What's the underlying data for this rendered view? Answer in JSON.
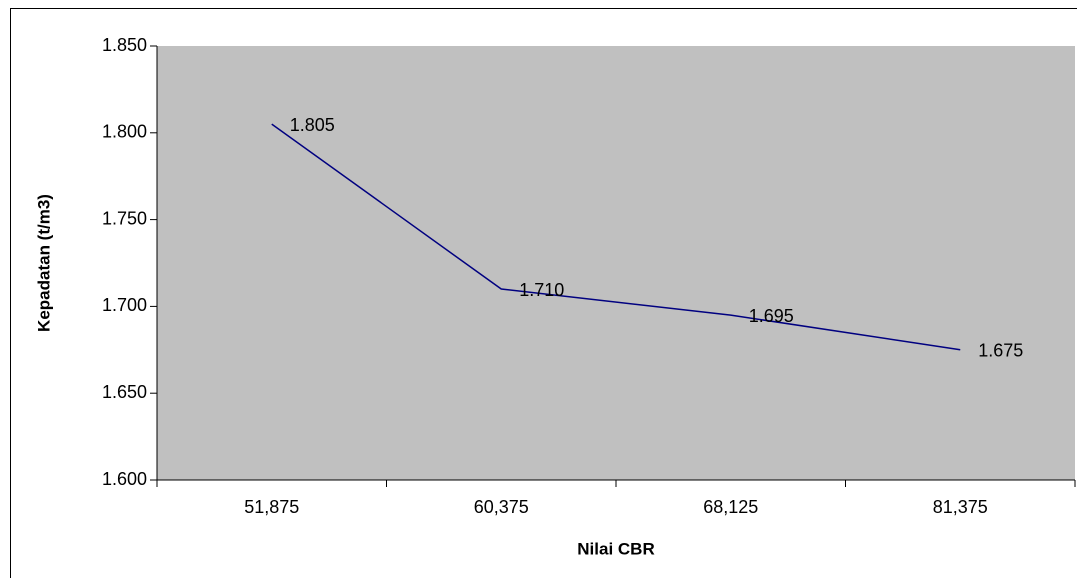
{
  "chart_data": {
    "type": "line",
    "x_label": "Nilai CBR",
    "y_label": "Kepadatan (t/m3)",
    "categories": [
      "51,875",
      "60,375",
      "68,125",
      "81,375"
    ],
    "series": [
      {
        "color": "#000080",
        "values": [
          1.805,
          1.71,
          1.695,
          1.675
        ],
        "value_labels": [
          "1.805",
          "1.710",
          "1.695",
          "1.675"
        ]
      }
    ],
    "ylim": [
      1.6,
      1.85
    ],
    "yticks": [
      {
        "value": 1.6,
        "label": "1.600"
      },
      {
        "value": 1.65,
        "label": "1.650"
      },
      {
        "value": 1.7,
        "label": "1.700"
      },
      {
        "value": 1.75,
        "label": "1.750"
      },
      {
        "value": 1.8,
        "label": "1.800"
      },
      {
        "value": 1.85,
        "label": "1.850"
      }
    ],
    "plot_background": "#c0c0c0"
  }
}
